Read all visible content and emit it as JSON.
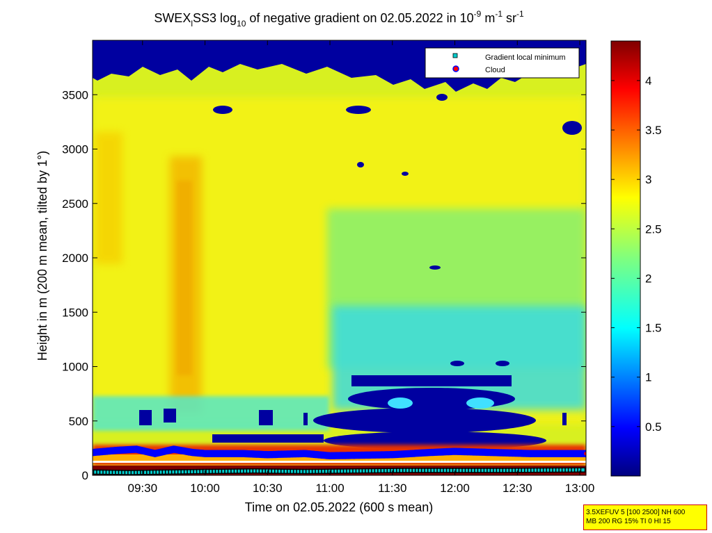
{
  "chart_data": {
    "type": "heatmap",
    "title": {
      "part1": "SWEX",
      "sub1": "l",
      "part2": "SS3 log",
      "sub2": "10",
      "part3": " of negative gradient on 02.05.2022 in 10",
      "sup1": "-9",
      "part4": " m",
      "sup2": "-1",
      "part5": " sr",
      "sup3": "-1"
    },
    "xlabel": "Time on 02.05.2022 (600 s mean)",
    "ylabel": "Height in m (200 m mean, tilted by 1°)",
    "x_ticks": [
      "09:30",
      "10:00",
      "10:30",
      "11:00",
      "11:30",
      "12:00",
      "12:30",
      "13:00"
    ],
    "x_tick_hours": [
      9.5,
      10.0,
      10.5,
      11.0,
      11.5,
      12.0,
      12.5,
      13.0
    ],
    "x_range_hours": [
      9.1,
      13.05
    ],
    "y_ticks": [
      0,
      500,
      1000,
      1500,
      2000,
      2500,
      3000,
      3500
    ],
    "y_range": [
      0,
      4000
    ],
    "colorbar": {
      "ticks": [
        "0.5",
        "1",
        "1.5",
        "2",
        "2.5",
        "3",
        "3.5",
        "4"
      ],
      "tick_values": [
        0.5,
        1,
        1.5,
        2,
        2.5,
        3,
        3.5,
        4
      ],
      "range": [
        0,
        4.4
      ],
      "colormap": "jet"
    },
    "legend": {
      "position": "top-right",
      "entries": [
        {
          "label": "Gradient local minimum",
          "marker": "square",
          "color": "#00cccc"
        },
        {
          "label": "Cloud",
          "marker": "circle",
          "color": "#ff0000"
        }
      ]
    },
    "cloud_base_m": [
      [
        9.1,
        210
      ],
      [
        9.3,
        230
      ],
      [
        9.45,
        240
      ],
      [
        9.6,
        200
      ],
      [
        9.75,
        240
      ],
      [
        9.9,
        210
      ],
      [
        10.0,
        200
      ],
      [
        10.3,
        200
      ],
      [
        10.5,
        190
      ],
      [
        10.8,
        200
      ],
      [
        11.0,
        180
      ],
      [
        11.5,
        190
      ],
      [
        11.8,
        210
      ],
      [
        12.0,
        220
      ],
      [
        12.3,
        210
      ],
      [
        12.6,
        200
      ],
      [
        13.05,
        200
      ]
    ],
    "gradient_min_m": [
      [
        9.1,
        30
      ],
      [
        9.4,
        25
      ],
      [
        9.7,
        30
      ],
      [
        10.0,
        35
      ],
      [
        10.4,
        40
      ],
      [
        10.8,
        35
      ],
      [
        11.2,
        40
      ],
      [
        11.6,
        45
      ],
      [
        12.0,
        45
      ],
      [
        12.4,
        45
      ],
      [
        13.05,
        50
      ]
    ],
    "grid": false
  },
  "info_box": {
    "line1": "3.5XEFUV 5 [100 2500] NH 600",
    "line2": "MB 200 RG 15% TI 0 HI 15"
  }
}
